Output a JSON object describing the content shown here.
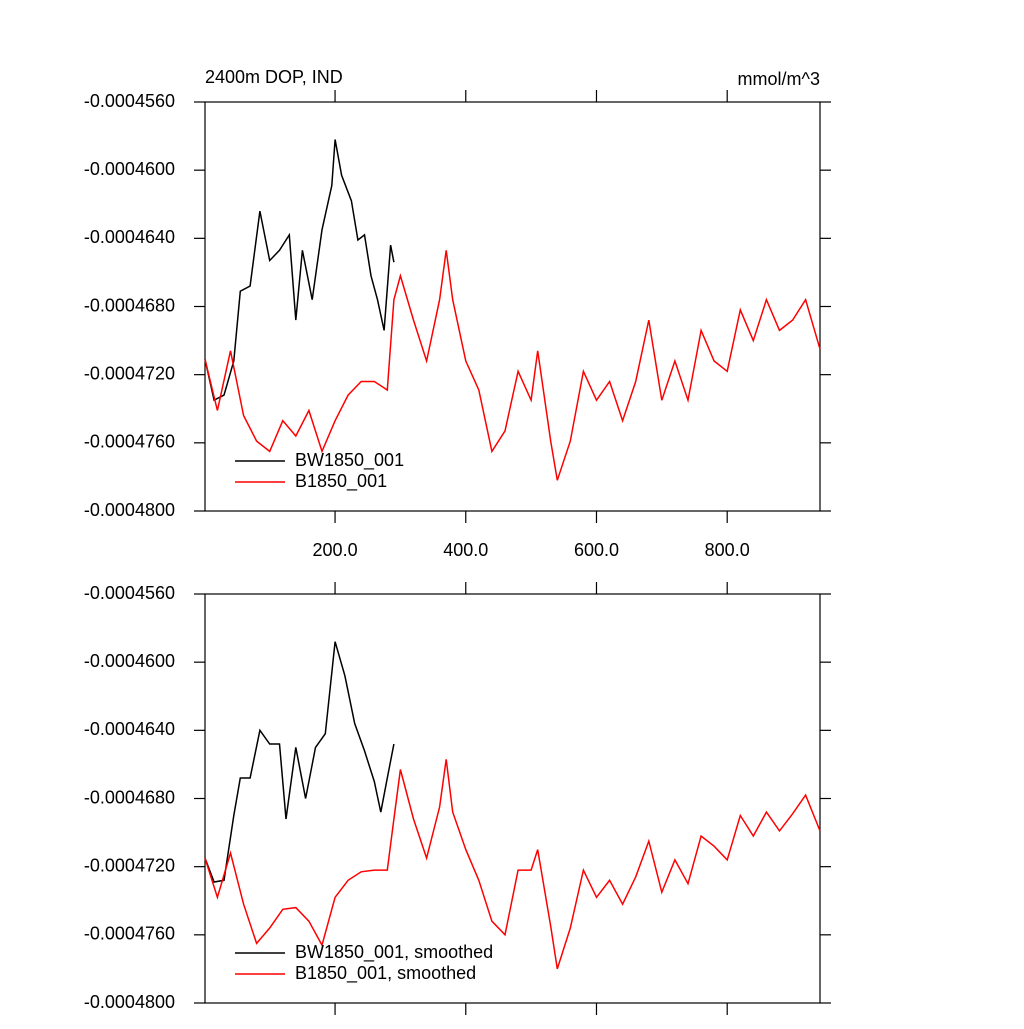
{
  "chart_data": [
    {
      "type": "line",
      "title": "2400m DOP, IND",
      "units": "mmol/m^3",
      "xlim": [
        1,
        942
      ],
      "ylim": [
        -0.000456,
        -0.00048
      ],
      "xticks": [
        {
          "value": 200,
          "label": "200.0"
        },
        {
          "value": 400,
          "label": "400.0"
        },
        {
          "value": 600,
          "label": "600.0"
        },
        {
          "value": 800,
          "label": "800.0"
        }
      ],
      "yticks": [
        {
          "value": -0.000456,
          "label": "-0.0004560"
        },
        {
          "value": -0.00046,
          "label": "-0.0004600"
        },
        {
          "value": -0.000464,
          "label": "-0.0004640"
        },
        {
          "value": -0.000468,
          "label": "-0.0004680"
        },
        {
          "value": -0.000472,
          "label": "-0.0004720"
        },
        {
          "value": -0.000476,
          "label": "-0.0004760"
        },
        {
          "value": -0.00048,
          "label": "-0.0004800"
        }
      ],
      "legend": "lower left",
      "series": [
        {
          "name": "BW1850_001",
          "color": "#000000",
          "x": [
            1,
            15,
            30,
            45,
            55,
            70,
            85,
            100,
            115,
            130,
            140,
            150,
            165,
            180,
            195,
            200,
            210,
            225,
            235,
            245,
            255,
            265,
            275,
            285,
            290
          ],
          "values": [
            -0.0004711,
            -0.0004735,
            -0.0004732,
            -0.0004712,
            -0.0004671,
            -0.0004668,
            -0.0004624,
            -0.0004653,
            -0.0004647,
            -0.0004638,
            -0.0004688,
            -0.0004647,
            -0.0004676,
            -0.0004635,
            -0.0004609,
            -0.0004582,
            -0.0004603,
            -0.0004618,
            -0.0004641,
            -0.0004638,
            -0.0004662,
            -0.0004676,
            -0.0004694,
            -0.0004644,
            -0.0004654
          ]
        },
        {
          "name": "B1850_001",
          "color": "#ff0000",
          "x": [
            1,
            20,
            40,
            60,
            80,
            100,
            120,
            140,
            160,
            180,
            200,
            220,
            240,
            260,
            280,
            290,
            300,
            320,
            340,
            360,
            370,
            380,
            400,
            420,
            440,
            460,
            480,
            500,
            510,
            530,
            540,
            560,
            580,
            600,
            620,
            640,
            660,
            680,
            700,
            720,
            740,
            760,
            780,
            800,
            820,
            840,
            860,
            880,
            900,
            920,
            942
          ],
          "values": [
            -0.0004711,
            -0.0004741,
            -0.0004706,
            -0.0004744,
            -0.0004759,
            -0.0004765,
            -0.0004747,
            -0.0004756,
            -0.0004741,
            -0.0004765,
            -0.0004747,
            -0.0004732,
            -0.0004724,
            -0.0004724,
            -0.0004729,
            -0.0004676,
            -0.0004662,
            -0.0004688,
            -0.0004712,
            -0.0004676,
            -0.0004647,
            -0.0004676,
            -0.0004712,
            -0.0004729,
            -0.0004765,
            -0.0004753,
            -0.0004718,
            -0.0004735,
            -0.0004706,
            -0.0004759,
            -0.0004782,
            -0.0004759,
            -0.0004718,
            -0.0004735,
            -0.0004724,
            -0.0004747,
            -0.0004724,
            -0.0004688,
            -0.0004735,
            -0.0004712,
            -0.0004735,
            -0.0004694,
            -0.0004712,
            -0.0004718,
            -0.0004682,
            -0.00047,
            -0.0004676,
            -0.0004694,
            -0.0004688,
            -0.0004676,
            -0.0004705
          ]
        }
      ]
    },
    {
      "type": "line",
      "xlim": [
        1,
        942
      ],
      "ylim": [
        -0.000456,
        -0.00048
      ],
      "xticks": [
        200,
        400,
        600,
        800
      ],
      "yticks": [
        {
          "value": -0.000456,
          "label": "-0.0004560"
        },
        {
          "value": -0.00046,
          "label": "-0.0004600"
        },
        {
          "value": -0.000464,
          "label": "-0.0004640"
        },
        {
          "value": -0.000468,
          "label": "-0.0004680"
        },
        {
          "value": -0.000472,
          "label": "-0.0004720"
        },
        {
          "value": -0.000476,
          "label": "-0.0004760"
        },
        {
          "value": -0.00048,
          "label": "-0.0004800"
        }
      ],
      "legend": "lower left",
      "series": [
        {
          "name": "BW1850_001, smoothed",
          "color": "#000000",
          "x": [
            1,
            15,
            30,
            45,
            55,
            70,
            85,
            100,
            115,
            125,
            140,
            155,
            170,
            185,
            200,
            215,
            230,
            245,
            260,
            270,
            280,
            290
          ],
          "values": [
            -0.0004715,
            -0.0004729,
            -0.0004728,
            -0.000469,
            -0.0004668,
            -0.0004668,
            -0.000464,
            -0.0004648,
            -0.0004648,
            -0.0004692,
            -0.000465,
            -0.000468,
            -0.000465,
            -0.0004642,
            -0.0004588,
            -0.0004608,
            -0.0004636,
            -0.0004652,
            -0.000467,
            -0.0004688,
            -0.0004668,
            -0.0004648
          ]
        },
        {
          "name": "B1850_001, smoothed",
          "color": "#ff0000",
          "x": [
            1,
            20,
            40,
            60,
            80,
            100,
            120,
            140,
            160,
            180,
            200,
            220,
            240,
            260,
            280,
            290,
            300,
            320,
            340,
            360,
            370,
            380,
            400,
            420,
            440,
            460,
            480,
            500,
            510,
            530,
            540,
            560,
            580,
            600,
            620,
            640,
            660,
            680,
            700,
            720,
            740,
            760,
            780,
            800,
            820,
            840,
            860,
            880,
            900,
            920,
            942
          ],
          "values": [
            -0.0004715,
            -0.0004738,
            -0.0004712,
            -0.0004742,
            -0.0004765,
            -0.0004756,
            -0.0004745,
            -0.0004744,
            -0.0004752,
            -0.0004766,
            -0.0004738,
            -0.0004728,
            -0.0004723,
            -0.0004722,
            -0.0004722,
            -0.0004692,
            -0.0004663,
            -0.0004692,
            -0.0004715,
            -0.0004685,
            -0.0004657,
            -0.0004688,
            -0.000471,
            -0.0004728,
            -0.0004752,
            -0.000476,
            -0.0004722,
            -0.0004722,
            -0.000471,
            -0.0004755,
            -0.000478,
            -0.0004756,
            -0.0004722,
            -0.0004738,
            -0.0004728,
            -0.0004742,
            -0.0004726,
            -0.0004705,
            -0.0004735,
            -0.0004716,
            -0.000473,
            -0.0004702,
            -0.0004708,
            -0.0004716,
            -0.000469,
            -0.0004702,
            -0.0004688,
            -0.0004699,
            -0.0004689,
            -0.0004678,
            -0.0004699
          ]
        }
      ]
    }
  ]
}
